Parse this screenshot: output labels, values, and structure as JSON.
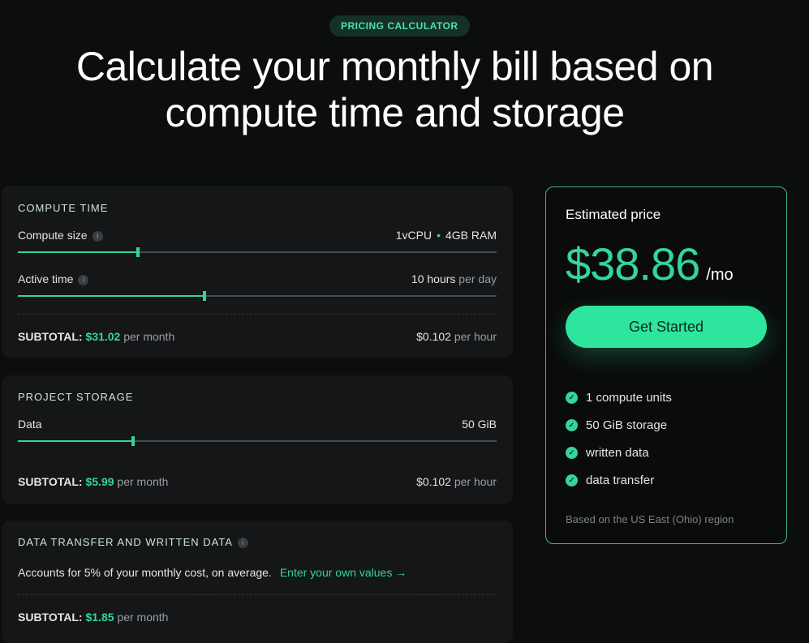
{
  "badge": "PRICING CALCULATOR",
  "title": "Calculate your monthly bill based on compute time and storage",
  "compute": {
    "heading": "COMPUTE TIME",
    "size_label": "Compute size",
    "size_value_cpu": "1vCPU",
    "size_value_ram": "4GB RAM",
    "size_slider_percent": 25,
    "active_label": "Active time",
    "active_value": "10 hours",
    "active_unit": "per day",
    "active_slider_percent": 39,
    "subtotal_label": "SUBTOTAL:",
    "subtotal_value": "$31.02",
    "subtotal_unit": "per month",
    "rate_value": "$0.102",
    "rate_unit": "per hour"
  },
  "storage": {
    "heading": "PROJECT STORAGE",
    "data_label": "Data",
    "data_value": "50 GiB",
    "slider_percent": 24,
    "subtotal_label": "SUBTOTAL:",
    "subtotal_value": "$5.99",
    "subtotal_unit": "per month",
    "rate_value": "$0.102",
    "rate_unit": "per hour"
  },
  "transfer": {
    "heading": "DATA TRANSFER AND WRITTEN DATA",
    "desc": "Accounts for 5% of your monthly cost, on average.",
    "link": "Enter your own values →",
    "subtotal_label": "SUBTOTAL:",
    "subtotal_value": "$1.85",
    "subtotal_unit": "per month"
  },
  "estimate": {
    "title": "Estimated price",
    "price": "$38.86",
    "per": "/mo",
    "cta": "Get Started",
    "features": [
      "1 compute units",
      "50 GiB storage",
      "written data",
      "data transfer"
    ],
    "note": "Based on the US East (Ohio) region"
  },
  "colors": {
    "accent": "#34d59a",
    "background": "#0c0d0d",
    "card": "#141617"
  }
}
